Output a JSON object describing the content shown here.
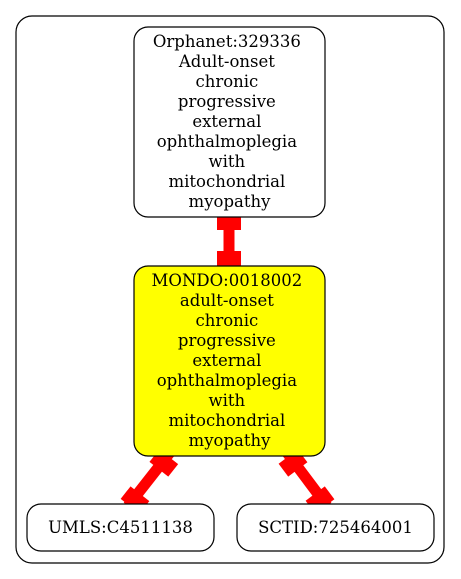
{
  "colors": {
    "background": "#ffffff",
    "border": "#000000",
    "node_fill": "#ffffff",
    "highlight_fill": "#ffff00",
    "edge": "#ff0000"
  },
  "nodes": {
    "orphanet": {
      "lines": [
        "Orphanet:329336",
        "Adult-onset",
        "chronic",
        "progressive",
        "external",
        "ophthalmoplegia",
        "with",
        "mitochondrial",
        "myopathy"
      ]
    },
    "mondo": {
      "lines": [
        "MONDO:0018002",
        "adult-onset",
        "chronic",
        "progressive",
        "external",
        "ophthalmoplegia",
        "with",
        "mitochondrial",
        "myopathy"
      ]
    },
    "umls": {
      "lines": [
        "UMLS:C4511138"
      ]
    },
    "sctid": {
      "lines": [
        "SCTID:725464001"
      ]
    }
  },
  "edges": [
    {
      "from": "orphanet",
      "to": "mondo"
    },
    {
      "from": "mondo",
      "to": "umls"
    },
    {
      "from": "mondo",
      "to": "sctid"
    }
  ]
}
